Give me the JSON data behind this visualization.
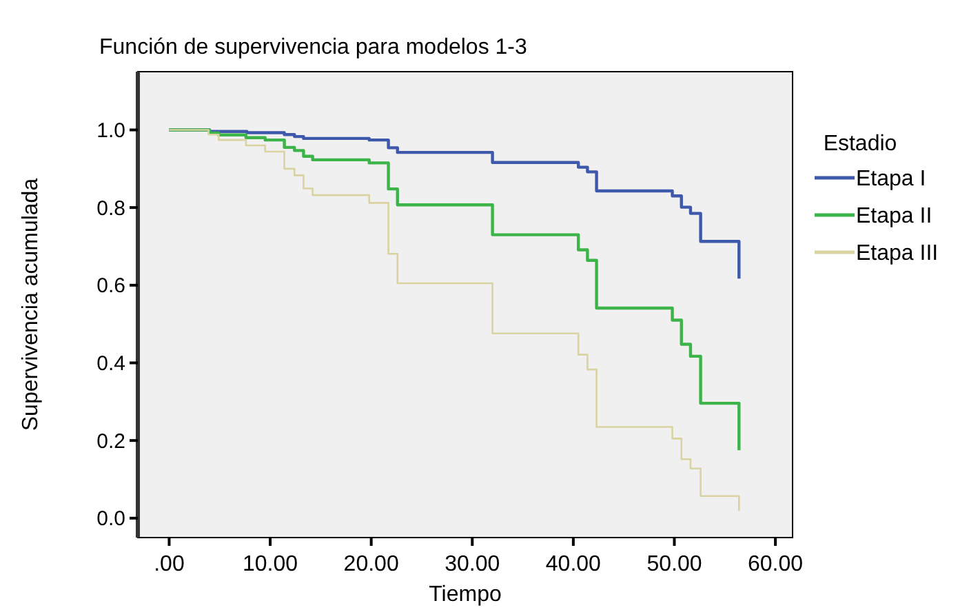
{
  "chart_data": {
    "type": "step",
    "title": "Función de supervivencia para modelos 1-3",
    "xlabel": "Tiempo",
    "ylabel": "Supervivencia acumulada",
    "legend_title": "Estadio",
    "legend": "right",
    "grid": false,
    "xlim": [
      -3.1,
      61.7
    ],
    "xticks": [
      {
        "value": 0,
        "label": ".00"
      },
      {
        "value": 10,
        "label": "10.00"
      },
      {
        "value": 20,
        "label": "20.00"
      },
      {
        "value": 30,
        "label": "30.00"
      },
      {
        "value": 40,
        "label": "40.00"
      },
      {
        "value": 50,
        "label": "50.00"
      },
      {
        "value": 60,
        "label": "60.00"
      }
    ],
    "ylim": [
      -0.05,
      1.15
    ],
    "yticks": [
      {
        "value": 0,
        "label": "0.0"
      },
      0.2,
      0.4,
      0.6,
      0.8,
      {
        "value": 1,
        "label": "1.0"
      }
    ],
    "series": [
      {
        "name": "Etapa I",
        "color": "#3e58ac",
        "x": [
          0,
          4.0,
          7.7,
          11.4,
          12.4,
          13.3,
          19.8,
          21.7,
          22.6,
          32.0,
          40.5,
          41.4,
          42.3,
          49.8,
          50.7,
          51.6,
          52.6,
          56.4
        ],
        "values": [
          1.0,
          0.996,
          0.993,
          0.988,
          0.983,
          0.978,
          0.974,
          0.954,
          0.942,
          0.916,
          0.904,
          0.892,
          0.843,
          0.83,
          0.801,
          0.785,
          0.713,
          0.617
        ]
      },
      {
        "name": "Etapa II",
        "color": "#3cb44a",
        "x": [
          0,
          4.0,
          4.9,
          7.6,
          9.5,
          11.4,
          12.4,
          13.3,
          14.2,
          19.8,
          21.7,
          22.6,
          32.0,
          40.5,
          41.4,
          42.3,
          49.8,
          50.7,
          51.6,
          52.6,
          56.4
        ],
        "values": [
          1.0,
          0.992,
          0.987,
          0.98,
          0.974,
          0.955,
          0.947,
          0.932,
          0.923,
          0.915,
          0.848,
          0.807,
          0.73,
          0.691,
          0.664,
          0.541,
          0.51,
          0.448,
          0.417,
          0.296,
          0.175
        ]
      },
      {
        "name": "Etapa III",
        "color": "#d8d3a0",
        "x": [
          0,
          3.9,
          4.9,
          7.6,
          9.5,
          11.4,
          12.4,
          13.3,
          14.2,
          19.8,
          21.7,
          22.6,
          32.0,
          40.5,
          41.4,
          42.3,
          49.8,
          50.7,
          51.6,
          52.6,
          56.4
        ],
        "values": [
          1.0,
          0.988,
          0.974,
          0.96,
          0.944,
          0.9,
          0.883,
          0.849,
          0.832,
          0.812,
          0.681,
          0.605,
          0.476,
          0.421,
          0.383,
          0.235,
          0.205,
          0.152,
          0.128,
          0.057,
          0.019
        ]
      }
    ]
  }
}
